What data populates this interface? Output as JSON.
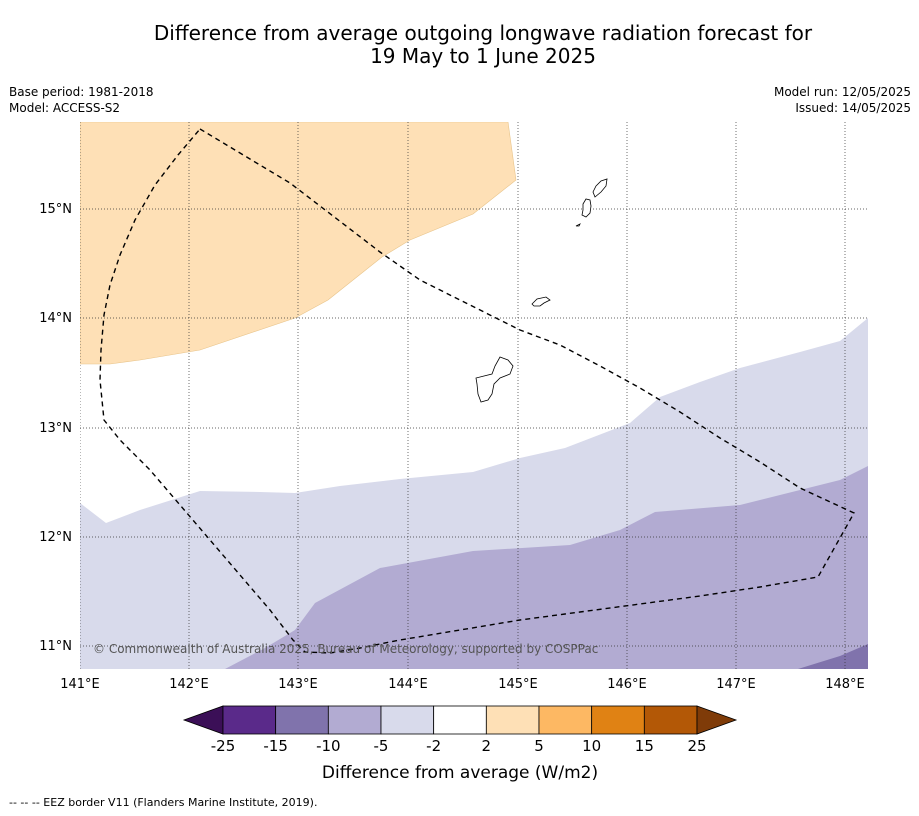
{
  "title_line1": "Difference from average outgoing longwave radiation forecast for",
  "title_line2": "19 May to 1 June 2025",
  "base_period": "Base period: 1981-2018",
  "model": "Model: ACCESS-S2",
  "model_run": "Model run: 12/05/2025",
  "issued": "Issued: 14/05/2025",
  "copyright": "© Commonwealth of Australia 2025, Bureau of Meteorology, supported by COSPPac",
  "lon_ticks": [
    "141°E",
    "142°E",
    "143°E",
    "144°E",
    "145°E",
    "146°E",
    "147°E",
    "148°E"
  ],
  "lat_ticks": [
    "15°N",
    "14°N",
    "13°N",
    "12°N",
    "11°N"
  ],
  "colorbar": {
    "label": "Difference from average (W/m2)",
    "ticks": [
      "-25",
      "-15",
      "-10",
      "-5",
      "-2",
      "2",
      "5",
      "10",
      "15",
      "25"
    ],
    "colors": [
      "#3b0f57",
      "#5a2a8a",
      "#8073ac",
      "#b2abd2",
      "#d8daeb",
      "#ffffff",
      "#fee0b6",
      "#fdb863",
      "#e08214",
      "#b35806",
      "#7f3b08"
    ]
  },
  "legend_footer": "--  --  -- EEZ border V11 (Flanders Marine Institute, 2019)."
}
